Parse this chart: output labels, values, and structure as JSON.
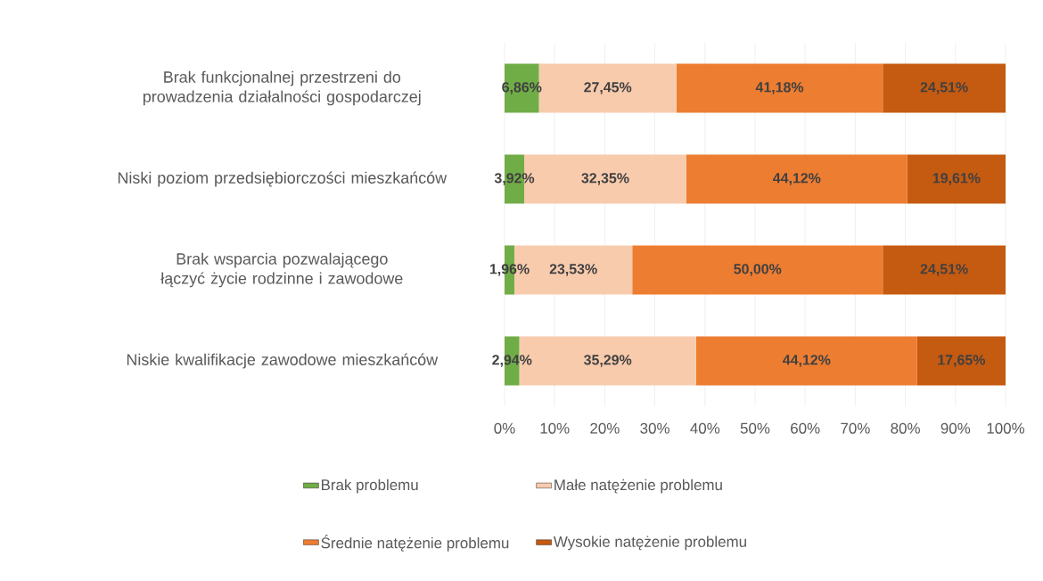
{
  "chart_data": {
    "type": "bar",
    "orientation": "horizontal",
    "stacked": true,
    "categories": [
      "Brak funkcjonalnej przestrzeni do prowadzenia działalności gospodarczej",
      "Niski poziom przedsiębiorczości mieszkańców",
      "Brak wsparcia pozwalającego łączyć życie rodzinne i zawodowe",
      "Niskie kwalifikacje zawodowe mieszkańców"
    ],
    "series": [
      {
        "name": "Brak problemu",
        "color": "#70ad47",
        "values": [
          6.86,
          3.92,
          1.96,
          2.94
        ],
        "value_labels": [
          "6,86%",
          "3,92%",
          "1,96%",
          "2,94%"
        ]
      },
      {
        "name": "Małe natężenie problemu",
        "color": "#f8cbad",
        "values": [
          27.45,
          32.35,
          23.53,
          35.29
        ],
        "value_labels": [
          "27,45%",
          "32,35%",
          "23,53%",
          "35,29%"
        ]
      },
      {
        "name": "Średnie natężenie problemu",
        "color": "#ed7d31",
        "values": [
          41.18,
          44.12,
          50.0,
          44.12
        ],
        "value_labels": [
          "41,18%",
          "44,12%",
          "50,00%",
          "44,12%"
        ]
      },
      {
        "name": "Wysokie natężenie problemu",
        "color": "#c55a11",
        "values": [
          24.51,
          19.61,
          24.51,
          17.65
        ],
        "value_labels": [
          "24,51%",
          "19,61%",
          "24,51%",
          "17,65%"
        ]
      }
    ],
    "xlim": [
      0,
      100
    ],
    "xticks": [
      {
        "value": 0,
        "label": "0%"
      },
      {
        "value": 10,
        "label": "10%"
      },
      {
        "value": 20,
        "label": "20%"
      },
      {
        "value": 30,
        "label": "30%"
      },
      {
        "value": 40,
        "label": "40%"
      },
      {
        "value": 50,
        "label": "50%"
      },
      {
        "value": 60,
        "label": "60%"
      },
      {
        "value": 70,
        "label": "70%"
      },
      {
        "value": 80,
        "label": "80%"
      },
      {
        "value": 90,
        "label": "90%"
      },
      {
        "value": 100,
        "label": "100%"
      }
    ],
    "grid": "x",
    "legend": "bottom"
  }
}
